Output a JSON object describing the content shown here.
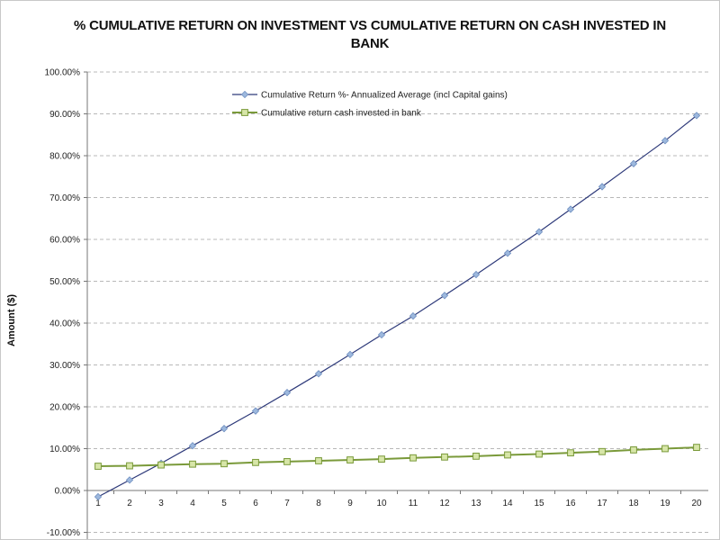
{
  "chart_data": {
    "type": "line",
    "title_line1": "% CUMULATIVE RETURN ON INVESTMENT VS CUMULATIVE RETURN ON CASH INVESTED IN",
    "title_line2": "BANK",
    "xlabel": "",
    "ylabel": "Amount ($)",
    "ylim": [
      -10,
      100
    ],
    "yticks": [
      "-10.00%",
      "0.00%",
      "10.00%",
      "20.00%",
      "30.00%",
      "40.00%",
      "50.00%",
      "60.00%",
      "70.00%",
      "80.00%",
      "90.00%",
      "100.00%"
    ],
    "x": [
      1,
      2,
      3,
      4,
      5,
      6,
      7,
      8,
      9,
      10,
      11,
      12,
      13,
      14,
      15,
      16,
      17,
      18,
      19,
      20
    ],
    "grid": true,
    "legend_position": "top-center",
    "series": [
      {
        "name": "Cumulative Return %- Annualized Average (incl Capital gains)",
        "color": "#2e3a7a",
        "marker": "diamond",
        "marker_color": "#9db8dd",
        "values": [
          -1.5,
          2.5,
          6.5,
          10.7,
          14.8,
          19.0,
          23.4,
          27.9,
          32.5,
          37.2,
          41.7,
          46.6,
          51.6,
          56.7,
          61.8,
          67.2,
          72.6,
          78.1,
          83.6,
          89.6
        ]
      },
      {
        "name": "Cumulative return cash invested in bank",
        "color": "#7a9a3a",
        "marker": "square",
        "marker_color": "#d7e6a8",
        "values": [
          5.8,
          5.9,
          6.1,
          6.3,
          6.4,
          6.7,
          6.9,
          7.1,
          7.3,
          7.5,
          7.8,
          8.0,
          8.2,
          8.5,
          8.7,
          9.0,
          9.3,
          9.7,
          10.0,
          10.3
        ]
      }
    ]
  }
}
